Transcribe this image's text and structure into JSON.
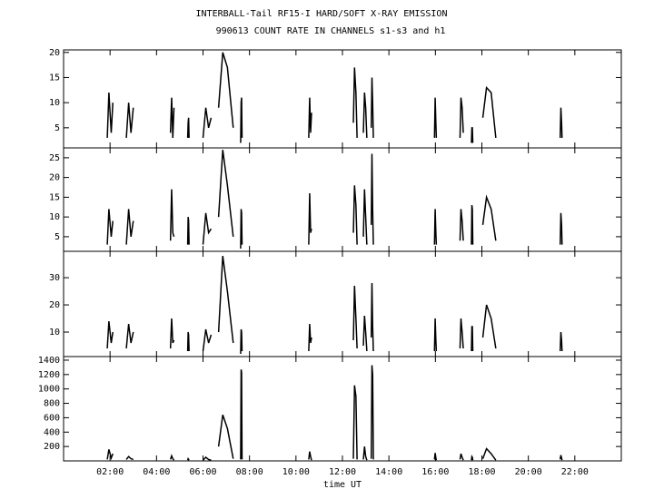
{
  "chart_data": [
    {
      "type": "line",
      "title": "INTERBALL-Tail RF15-I HARD/SOFT X-RAY EMISSION",
      "subtitle": "990613  COUNT RATE IN CHANNELS s1-s3 and h1",
      "color": "#000000",
      "x": [
        1.88,
        1.95,
        2.05,
        2.12,
        null,
        2.7,
        2.8,
        2.9,
        3.0,
        null,
        4.6,
        4.65,
        4.7,
        4.75,
        null,
        5.34,
        5.36,
        5.38,
        5.4,
        null,
        6.0,
        6.12,
        6.24,
        6.35,
        null,
        6.67,
        6.85,
        7.05,
        7.3,
        null,
        7.62,
        7.64,
        7.66,
        7.68,
        null,
        10.55,
        10.59,
        10.63,
        10.67,
        null,
        12.47,
        12.52,
        12.58,
        12.63,
        null,
        12.9,
        12.95,
        13.0,
        13.05,
        null,
        13.24,
        13.27,
        13.3,
        13.33,
        null,
        15.96,
        15.99,
        16.02,
        16.04,
        null,
        17.06,
        17.1,
        17.15,
        17.2,
        null,
        17.55,
        17.57,
        17.59,
        17.61,
        null,
        18.04,
        18.2,
        18.4,
        18.6,
        null,
        21.37,
        21.4,
        21.43,
        21.45
      ],
      "values": [
        3,
        12,
        4,
        10,
        null,
        3,
        10,
        4,
        9,
        null,
        4,
        11,
        3,
        9,
        null,
        3,
        6,
        7,
        3,
        null,
        3,
        9,
        5,
        7,
        null,
        9,
        20,
        17,
        5,
        null,
        2,
        10,
        11,
        3,
        null,
        3,
        11,
        4,
        8,
        null,
        6,
        17,
        12,
        3,
        null,
        4,
        12,
        9,
        3,
        null,
        5,
        15,
        10,
        3,
        null,
        3,
        11,
        6,
        3,
        null,
        3,
        11,
        9,
        4,
        null,
        2,
        5,
        5,
        2,
        null,
        7,
        13,
        12,
        3,
        null,
        3,
        9,
        6,
        3
      ],
      "xlim": [
        0,
        24
      ],
      "ylim": [
        1,
        20.5
      ],
      "yticks": [
        5,
        10,
        15,
        20
      ]
    },
    {
      "type": "line",
      "color": "#000000",
      "x": [
        1.88,
        1.95,
        2.05,
        2.12,
        null,
        2.7,
        2.8,
        2.9,
        3.0,
        null,
        4.6,
        4.65,
        4.7,
        4.75,
        null,
        5.34,
        5.36,
        5.38,
        5.4,
        null,
        6.0,
        6.12,
        6.24,
        6.35,
        null,
        6.67,
        6.85,
        7.05,
        7.3,
        null,
        7.62,
        7.64,
        7.66,
        7.68,
        null,
        10.55,
        10.59,
        10.63,
        10.67,
        null,
        12.47,
        12.52,
        12.58,
        12.63,
        null,
        12.9,
        12.95,
        13.0,
        13.05,
        null,
        13.24,
        13.27,
        13.3,
        13.33,
        null,
        15.96,
        15.99,
        16.02,
        16.04,
        null,
        17.06,
        17.1,
        17.15,
        17.2,
        null,
        17.55,
        17.57,
        17.59,
        17.61,
        null,
        18.04,
        18.2,
        18.4,
        18.6,
        null,
        21.37,
        21.4,
        21.43,
        21.45
      ],
      "values": [
        3,
        12,
        5,
        9,
        null,
        3,
        12,
        5,
        9,
        null,
        4,
        17,
        6,
        5,
        null,
        3,
        10,
        9,
        3,
        null,
        3,
        11,
        6,
        7,
        null,
        10,
        27,
        18,
        5,
        null,
        2,
        12,
        11,
        3,
        null,
        3,
        16,
        6,
        7,
        null,
        6,
        18,
        13,
        3,
        null,
        5,
        17,
        10,
        3,
        null,
        8,
        26,
        12,
        3,
        null,
        3,
        12,
        6,
        3,
        null,
        4,
        12,
        9,
        4,
        null,
        3,
        13,
        12,
        3,
        null,
        8,
        15,
        12,
        4,
        null,
        3,
        11,
        8,
        3
      ],
      "xlim": [
        0,
        24
      ],
      "ylim": [
        1.3,
        27.5
      ],
      "yticks": [
        5,
        10,
        15,
        20,
        25
      ]
    },
    {
      "type": "line",
      "color": "#000000",
      "x": [
        1.88,
        1.95,
        2.05,
        2.12,
        null,
        2.7,
        2.8,
        2.9,
        3.0,
        null,
        4.6,
        4.65,
        4.7,
        4.75,
        null,
        5.34,
        5.36,
        5.38,
        5.4,
        null,
        6.0,
        6.12,
        6.24,
        6.35,
        null,
        6.67,
        6.85,
        7.05,
        7.3,
        null,
        7.62,
        7.64,
        7.66,
        7.68,
        null,
        10.55,
        10.59,
        10.63,
        10.67,
        null,
        12.47,
        12.52,
        12.58,
        12.63,
        null,
        12.9,
        12.95,
        13.0,
        13.05,
        null,
        13.24,
        13.27,
        13.3,
        13.33,
        null,
        15.96,
        15.99,
        16.02,
        16.04,
        null,
        17.06,
        17.1,
        17.15,
        17.2,
        null,
        17.55,
        17.57,
        17.59,
        17.61,
        null,
        18.04,
        18.2,
        18.4,
        18.6,
        null,
        21.37,
        21.4,
        21.43,
        21.45
      ],
      "values": [
        4,
        14,
        6,
        10,
        null,
        4,
        13,
        6,
        10,
        null,
        4,
        15,
        6,
        7,
        null,
        3,
        10,
        9,
        3,
        null,
        3,
        11,
        6,
        9,
        null,
        10,
        38,
        25,
        6,
        null,
        2,
        11,
        10,
        3,
        null,
        3,
        13,
        6,
        8,
        null,
        7,
        27,
        15,
        4,
        null,
        5,
        16,
        10,
        3,
        null,
        8,
        28,
        12,
        3,
        null,
        3,
        15,
        7,
        3,
        null,
        4,
        15,
        10,
        4,
        null,
        3,
        12,
        12,
        3,
        null,
        8,
        20,
        15,
        4,
        null,
        3,
        10,
        7,
        3
      ],
      "xlim": [
        0,
        24
      ],
      "ylim": [
        1,
        39.7
      ],
      "yticks": [
        10,
        20,
        30
      ]
    },
    {
      "type": "line",
      "color": "#000000",
      "xlabel": "time UT",
      "x": [
        1.88,
        1.95,
        2.05,
        2.12,
        null,
        2.7,
        2.8,
        2.9,
        3.0,
        null,
        4.6,
        4.65,
        4.7,
        4.75,
        null,
        5.34,
        5.36,
        5.38,
        5.4,
        null,
        6.0,
        6.12,
        6.24,
        6.35,
        null,
        6.67,
        6.85,
        7.05,
        7.3,
        null,
        7.62,
        7.64,
        7.66,
        7.68,
        null,
        10.55,
        10.59,
        10.63,
        10.67,
        null,
        12.47,
        12.52,
        12.58,
        12.63,
        null,
        12.9,
        12.95,
        13.0,
        13.05,
        null,
        13.24,
        13.27,
        13.3,
        13.33,
        null,
        15.96,
        15.99,
        16.02,
        16.04,
        null,
        17.06,
        17.1,
        17.15,
        17.2,
        null,
        17.55,
        17.57,
        17.59,
        17.61,
        null,
        18.04,
        18.2,
        18.4,
        18.6,
        null,
        21.37,
        21.4,
        21.43,
        21.45
      ],
      "values": [
        20,
        160,
        40,
        100,
        null,
        20,
        60,
        30,
        20,
        null,
        20,
        70,
        30,
        10,
        null,
        10,
        30,
        20,
        10,
        null,
        10,
        50,
        20,
        10,
        null,
        200,
        640,
        450,
        30,
        null,
        20,
        1270,
        1230,
        20,
        null,
        20,
        130,
        60,
        10,
        null,
        30,
        1050,
        900,
        20,
        null,
        20,
        200,
        60,
        10,
        null,
        30,
        1330,
        1200,
        20,
        null,
        20,
        110,
        40,
        10,
        null,
        20,
        100,
        50,
        10,
        null,
        10,
        60,
        50,
        10,
        null,
        30,
        170,
        100,
        10,
        null,
        20,
        80,
        40,
        10
      ],
      "xlim": [
        0,
        24
      ],
      "ylim": [
        0,
        1450
      ],
      "yticks": [
        200,
        400,
        600,
        800,
        1000,
        1200,
        1400
      ],
      "xticks": [
        {
          "value": 2,
          "label": "02:00"
        },
        {
          "value": 4,
          "label": "04:00"
        },
        {
          "value": 6,
          "label": "06:00"
        },
        {
          "value": 8,
          "label": "08:00"
        },
        {
          "value": 10,
          "label": "10:00"
        },
        {
          "value": 12,
          "label": "12:00"
        },
        {
          "value": 14,
          "label": "14:00"
        },
        {
          "value": 16,
          "label": "16:00"
        },
        {
          "value": 18,
          "label": "18:00"
        },
        {
          "value": 20,
          "label": "20:00"
        },
        {
          "value": 22,
          "label": "22:00"
        }
      ]
    }
  ]
}
